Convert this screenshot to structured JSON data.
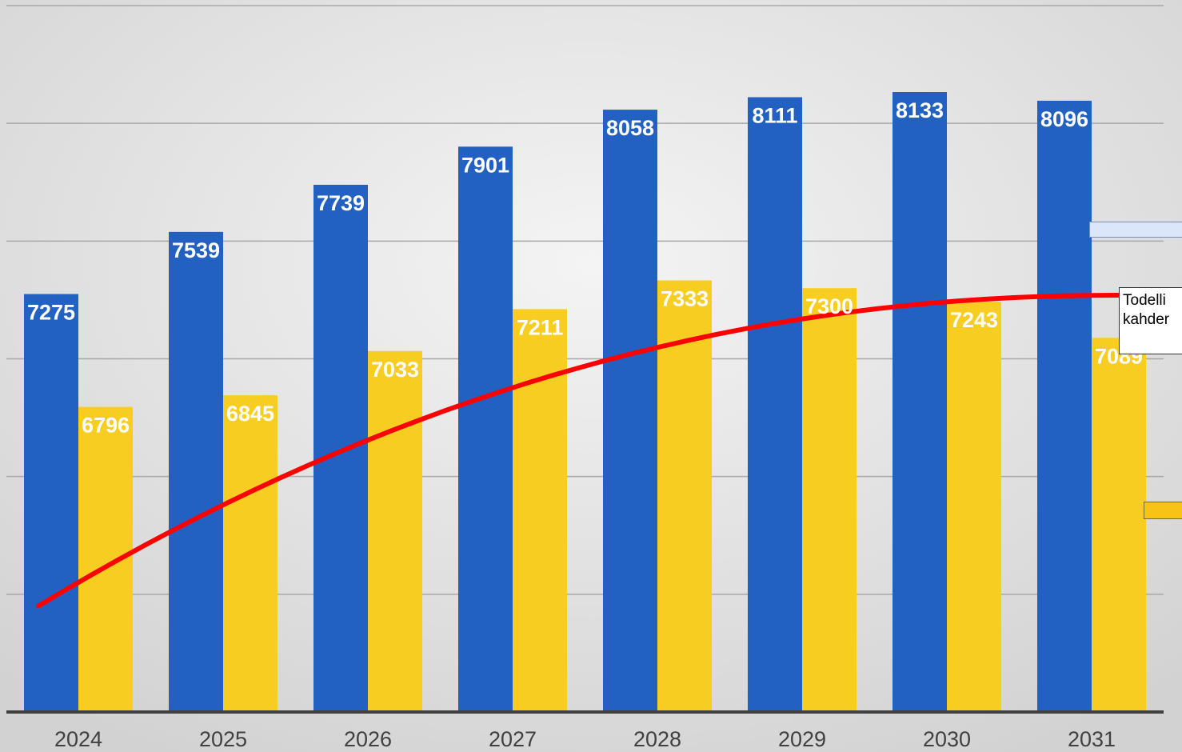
{
  "chart_data": {
    "type": "bar",
    "categories": [
      "2024",
      "2025",
      "2026",
      "2027",
      "2028",
      "2029",
      "2030",
      "2031"
    ],
    "series": [
      {
        "values": [
          7275,
          7539,
          7739,
          7901,
          8058,
          8111,
          8133,
          8096
        ]
      },
      {
        "values": [
          6796,
          6845,
          7033,
          7211,
          7333,
          7300,
          7243,
          7089
        ]
      }
    ],
    "trend_line": {
      "type": "curve",
      "color": "#ff0000"
    },
    "annotation": {
      "line1": "Todelli",
      "line2": "kahder"
    },
    "ylim": [
      5500,
      8500
    ],
    "grid": true,
    "colors": {
      "series1": "#2261c1",
      "series2": "#f8cd22",
      "trend": "#ff0000",
      "background_light": "#f2f2f2",
      "background_dark": "#d5d5d5",
      "gridline": "#a8a8a8",
      "axis": "#404040"
    }
  }
}
